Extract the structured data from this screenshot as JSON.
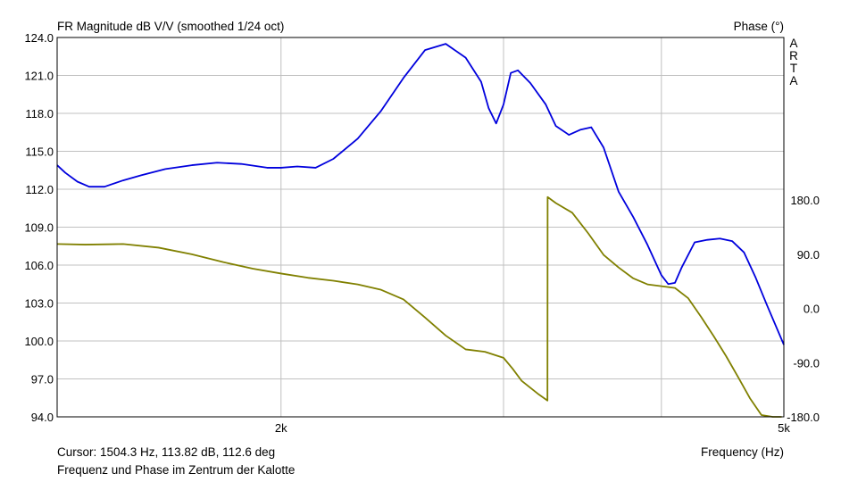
{
  "chart_data": {
    "type": "line",
    "title": "FR Magnitude dB V/V (smoothed 1/24 oct)",
    "y2_title": "Phase (°)",
    "xlabel": "Frequency (Hz)",
    "watermark": "ARTA",
    "cursor_text": "Cursor: 1504.3 Hz, 113.82 dB, 112.6 deg",
    "footer_text": "Frequenz und Phase im Zentrum der Kalotte",
    "x_scale": "log",
    "xlim": [
      1330,
      5000
    ],
    "x_gridlines": [
      2000,
      3000,
      4000
    ],
    "x_tick_labels": [
      {
        "value": 2000,
        "label": "2k"
      },
      {
        "value": 5000,
        "label": "5k"
      }
    ],
    "ylim": [
      94,
      124
    ],
    "y_ticks": [
      "124.0",
      "121.0",
      "118.0",
      "115.0",
      "112.0",
      "109.0",
      "106.0",
      "103.0",
      "100.0",
      "97.0",
      "94.0"
    ],
    "y2lim": [
      -180,
      450
    ],
    "y2_ticks": [
      "180.0",
      "90.0",
      "0.0",
      "-90.0",
      "-180.0"
    ],
    "grid": true,
    "colors": {
      "magnitude": "#0000dd",
      "phase": "#808000",
      "grid": "#c0c0c0"
    },
    "series": [
      {
        "key": "magnitude",
        "axis": "y",
        "x": [
          1330,
          1350,
          1380,
          1410,
          1450,
          1500,
          1550,
          1620,
          1700,
          1780,
          1860,
          1950,
          2000,
          2060,
          2130,
          2200,
          2300,
          2400,
          2500,
          2600,
          2700,
          2800,
          2880,
          2920,
          2960,
          3000,
          3040,
          3080,
          3150,
          3240,
          3300,
          3380,
          3450,
          3520,
          3600,
          3700,
          3800,
          3900,
          4000,
          4050,
          4100,
          4150,
          4250,
          4350,
          4450,
          4550,
          4650,
          4750,
          4850,
          5000
        ],
        "values": [
          113.9,
          113.3,
          112.6,
          112.2,
          112.2,
          112.7,
          113.1,
          113.6,
          113.9,
          114.1,
          114.0,
          113.7,
          113.7,
          113.8,
          113.7,
          114.4,
          116.0,
          118.2,
          120.8,
          123.0,
          123.5,
          122.4,
          120.5,
          118.4,
          117.2,
          118.7,
          121.2,
          121.4,
          120.4,
          118.7,
          117.0,
          116.3,
          116.7,
          116.9,
          115.3,
          111.8,
          109.8,
          107.6,
          105.2,
          104.5,
          104.6,
          105.8,
          107.8,
          108.0,
          108.1,
          107.9,
          107.0,
          105.0,
          102.8,
          99.7
        ]
      },
      {
        "key": "phase",
        "axis": "y2",
        "x": [
          1330,
          1400,
          1500,
          1600,
          1700,
          1800,
          1900,
          2000,
          2100,
          2200,
          2300,
          2400,
          2500,
          2600,
          2700,
          2800,
          2900,
          3000,
          3050,
          3100,
          3200,
          3250,
          3251,
          3300,
          3400,
          3500,
          3600,
          3700,
          3800,
          3900,
          4000,
          4100,
          4200,
          4300,
          4400,
          4500,
          4600,
          4700,
          4800,
          4900,
          4980
        ],
        "values": [
          107,
          106,
          107,
          101,
          90,
          77,
          66,
          58,
          51,
          46,
          40,
          31,
          15,
          -15,
          -45,
          -68,
          -72,
          -82,
          -100,
          -120,
          -143,
          -153,
          185,
          175,
          159,
          125,
          89,
          68,
          50,
          40,
          37,
          34,
          17,
          -14,
          -46,
          -79,
          -114,
          -149,
          -177,
          -183,
          -184
        ]
      }
    ]
  }
}
